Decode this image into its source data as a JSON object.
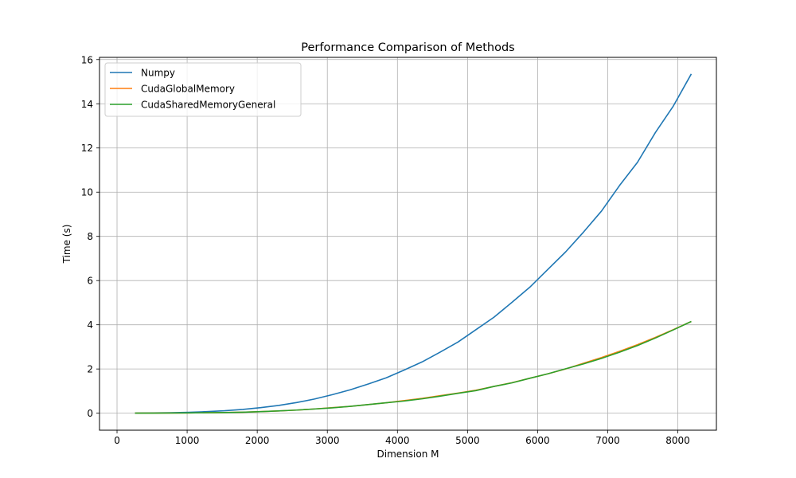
{
  "chart_data": {
    "type": "line",
    "title": "Performance Comparison of Methods",
    "xlabel": "Dimension M",
    "ylabel": "Time (s)",
    "xlim": [
      -250,
      8550
    ],
    "ylim": [
      -0.77,
      16.1
    ],
    "xticks": [
      0,
      1000,
      2000,
      3000,
      4000,
      5000,
      6000,
      7000,
      8000
    ],
    "yticks": [
      0,
      2,
      4,
      6,
      8,
      10,
      12,
      14,
      16
    ],
    "grid": true,
    "legend_position": "top-left",
    "x": [
      256,
      512,
      768,
      1024,
      1280,
      1536,
      1792,
      2048,
      2304,
      2560,
      2816,
      3072,
      3328,
      3584,
      3840,
      4096,
      4352,
      4608,
      4864,
      5120,
      5376,
      5632,
      5888,
      6144,
      6400,
      6656,
      6912,
      7168,
      7424,
      7680,
      7936,
      8192
    ],
    "series": [
      {
        "name": "Numpy",
        "color": "#1f77b4",
        "values": [
          0.004,
          0.01,
          0.02,
          0.04,
          0.07,
          0.11,
          0.17,
          0.25,
          0.35,
          0.48,
          0.64,
          0.84,
          1.06,
          1.32,
          1.6,
          1.95,
          2.32,
          2.76,
          3.22,
          3.78,
          4.34,
          5.01,
          5.7,
          6.5,
          7.3,
          8.2,
          9.15,
          10.3,
          11.35,
          12.7,
          13.9,
          15.35
        ]
      },
      {
        "name": "CudaGlobalMemory",
        "color": "#ff7f0e",
        "values": [
          0.001,
          0.003,
          0.006,
          0.012,
          0.02,
          0.03,
          0.045,
          0.07,
          0.1,
          0.14,
          0.19,
          0.25,
          0.31,
          0.39,
          0.47,
          0.57,
          0.67,
          0.79,
          0.91,
          1.04,
          1.21,
          1.38,
          1.58,
          1.78,
          2.0,
          2.26,
          2.52,
          2.8,
          3.1,
          3.43,
          3.78,
          4.15
        ]
      },
      {
        "name": "CudaSharedMemoryGeneral",
        "color": "#2ca02c",
        "values": [
          0.001,
          0.003,
          0.006,
          0.012,
          0.02,
          0.03,
          0.045,
          0.07,
          0.1,
          0.14,
          0.19,
          0.24,
          0.31,
          0.39,
          0.47,
          0.55,
          0.65,
          0.77,
          0.9,
          1.02,
          1.21,
          1.37,
          1.58,
          1.78,
          2.01,
          2.23,
          2.48,
          2.76,
          3.06,
          3.4,
          3.77,
          4.15
        ]
      }
    ]
  }
}
